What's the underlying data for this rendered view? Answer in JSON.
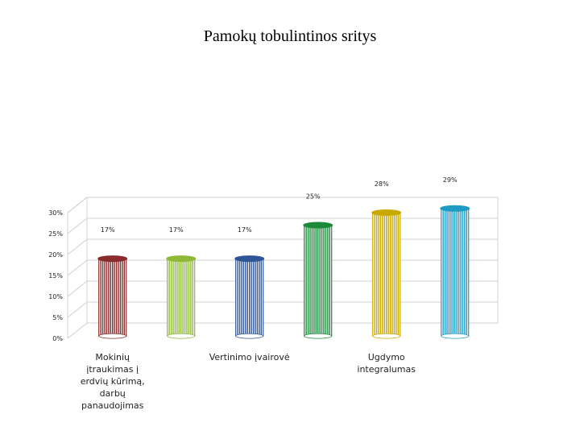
{
  "chart_data": {
    "type": "bar",
    "title": "Pamokų tobulintinos sritys",
    "categories": [
      "Mokinių įtraukimas į erdvių kūrimą, darbų panaudojimas",
      "",
      "Vertinimo įvairovė",
      "",
      "Ugdymo integralumas",
      ""
    ],
    "values": [
      17,
      17,
      17,
      25,
      28,
      29
    ],
    "data_labels": [
      "17%",
      "17%",
      "17%",
      "25%",
      "28%",
      "29%"
    ],
    "y_ticks": [
      "0%",
      "5%",
      "10%",
      "15%",
      "20%",
      "25%",
      "30%"
    ],
    "ylim": [
      0,
      30
    ],
    "grid": true,
    "style": "3d-cylinder",
    "colors": [
      "#8b2b2b",
      "#8fb838",
      "#2f5597",
      "#1a8a3a",
      "#c9a800",
      "#1e9ac4"
    ]
  }
}
